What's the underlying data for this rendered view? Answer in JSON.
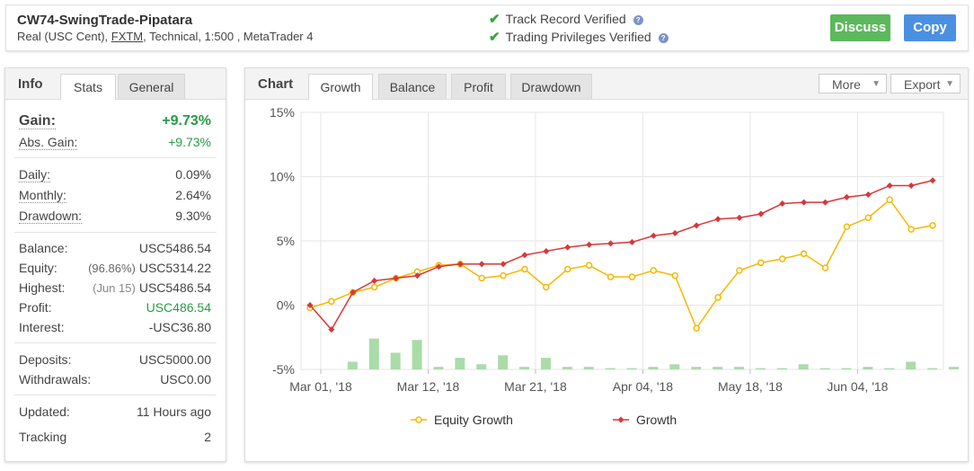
{
  "header": {
    "system_name": "CW74-SwingTrade-Pipatara",
    "account_prefix": "Real (USC Cent), ",
    "broker": "FXTM",
    "account_suffix": ", Technical, 1:500 , MetaTrader 4",
    "verifications": [
      "Track Record Verified",
      "Trading Privileges Verified"
    ],
    "discuss_label": "Discuss",
    "copy_label": "Copy",
    "colors": {
      "discuss": "#5cb85c",
      "copy": "#4a90e2",
      "check": "#3aa33a"
    }
  },
  "info": {
    "title": "Info",
    "tabs": [
      "Stats",
      "General"
    ],
    "gain": {
      "label": "Gain:",
      "value": "+9.73%"
    },
    "abs_gain": {
      "label": "Abs. Gain:",
      "value": "+9.73%"
    },
    "daily": {
      "label": "Daily:",
      "value": "0.09%"
    },
    "monthly": {
      "label": "Monthly:",
      "value": "2.64%"
    },
    "drawdown": {
      "label": "Drawdown:",
      "value": "9.30%"
    },
    "balance": {
      "label": "Balance:",
      "value": "USC5486.54"
    },
    "equity": {
      "label": "Equity:",
      "pre": "(96.86%)",
      "value": "USC5314.22"
    },
    "highest": {
      "label": "Highest:",
      "pre": "(Jun 15)",
      "value": "USC5486.54"
    },
    "profit": {
      "label": "Profit:",
      "value": "USC486.54"
    },
    "interest": {
      "label": "Interest:",
      "value": "-USC36.80"
    },
    "deposits": {
      "label": "Deposits:",
      "value": "USC5000.00"
    },
    "withdrawals": {
      "label": "Withdrawals:",
      "value": "USC0.00"
    },
    "updated": {
      "label": "Updated:",
      "value": "11 Hours ago"
    },
    "tracking": {
      "label": "Tracking",
      "value": "2"
    },
    "positive_color": "#2a9a45"
  },
  "chart_panel": {
    "title": "Chart",
    "tabs": [
      "Growth",
      "Balance",
      "Profit",
      "Drawdown"
    ],
    "more_label": "More",
    "export_label": "Export"
  },
  "chart_data": {
    "type": "line",
    "ylim": [
      -5,
      15
    ],
    "y_ticks": [
      "15%",
      "10%",
      "5%",
      "0%",
      "-5%"
    ],
    "y_tick_values": [
      15,
      10,
      5,
      0,
      -5
    ],
    "x_ticks": [
      {
        "index": 0,
        "label": "Mar 01, '18"
      },
      {
        "index": 5,
        "label": "Mar 12, '18"
      },
      {
        "index": 10,
        "label": "Mar 21, '18"
      },
      {
        "index": 15,
        "label": "Apr 04, '18"
      },
      {
        "index": 20,
        "label": "May 18, '18"
      },
      {
        "index": 25,
        "label": "Jun 04, '18"
      }
    ],
    "grid": true,
    "legend_position": "bottom",
    "series": [
      {
        "name": "Equity Growth",
        "color": "#f5b800",
        "values": [
          -0.2,
          0.3,
          1.0,
          1.4,
          2.1,
          2.6,
          3.1,
          3.2,
          2.1,
          2.3,
          2.8,
          1.4,
          2.8,
          3.1,
          2.2,
          2.2,
          2.7,
          2.3,
          -1.8,
          0.6,
          2.7,
          3.3,
          3.6,
          4.0,
          2.9,
          6.1,
          6.8,
          8.2,
          5.9,
          6.2
        ]
      },
      {
        "name": "Growth",
        "color": "#d9373a",
        "values": [
          0.0,
          -1.9,
          1.0,
          1.9,
          2.1,
          2.3,
          3.0,
          3.2,
          3.2,
          3.2,
          3.9,
          4.2,
          4.5,
          4.7,
          4.8,
          4.9,
          5.4,
          5.6,
          6.2,
          6.7,
          6.8,
          7.1,
          7.9,
          8.0,
          8.0,
          8.4,
          8.6,
          9.3,
          9.3,
          9.7
        ]
      },
      {
        "name": "Daily change",
        "color": "#a9dca9",
        "values": [
          0,
          0.6,
          2.4,
          1.3,
          2.3,
          0.2,
          0.9,
          0.4,
          1.1,
          0.2,
          0.9,
          0.2,
          0.2,
          0.1,
          0.1,
          0.2,
          0.4,
          0.2,
          0.2,
          0.2,
          0.1,
          0.1,
          0.4,
          0.1,
          0.1,
          0.2,
          0.1,
          0.6,
          0.1,
          0.2
        ]
      }
    ],
    "legend": [
      "Equity Growth",
      "Growth"
    ]
  }
}
